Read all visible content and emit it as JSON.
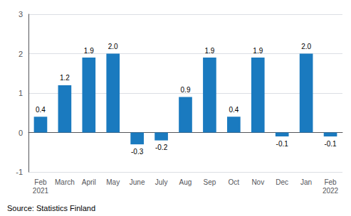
{
  "chart_data": {
    "type": "bar",
    "categories": [
      "Feb\n2021",
      "March",
      "April",
      "May",
      "June",
      "July",
      "Aug",
      "Sep",
      "Oct",
      "Nov",
      "Dec",
      "Jan",
      "Feb\n2022"
    ],
    "values": [
      0.4,
      1.2,
      1.9,
      2.0,
      -0.3,
      -0.2,
      0.9,
      1.9,
      0.4,
      1.9,
      -0.1,
      2.0,
      -0.1
    ],
    "value_labels": [
      "0.4",
      "1.2",
      "1.9",
      "2.0",
      "-0.3",
      "-0.2",
      "0.9",
      "1.9",
      "0.4",
      "1.9",
      "-0.1",
      "2.0",
      "-0.1"
    ],
    "color": "#1a7abf",
    "ylim": [
      -1.0,
      3.0
    ],
    "yticks": [
      -1,
      0,
      1,
      2,
      3
    ],
    "grid": true,
    "data_labels": true,
    "annotation": "Source: Statistics Finland"
  }
}
